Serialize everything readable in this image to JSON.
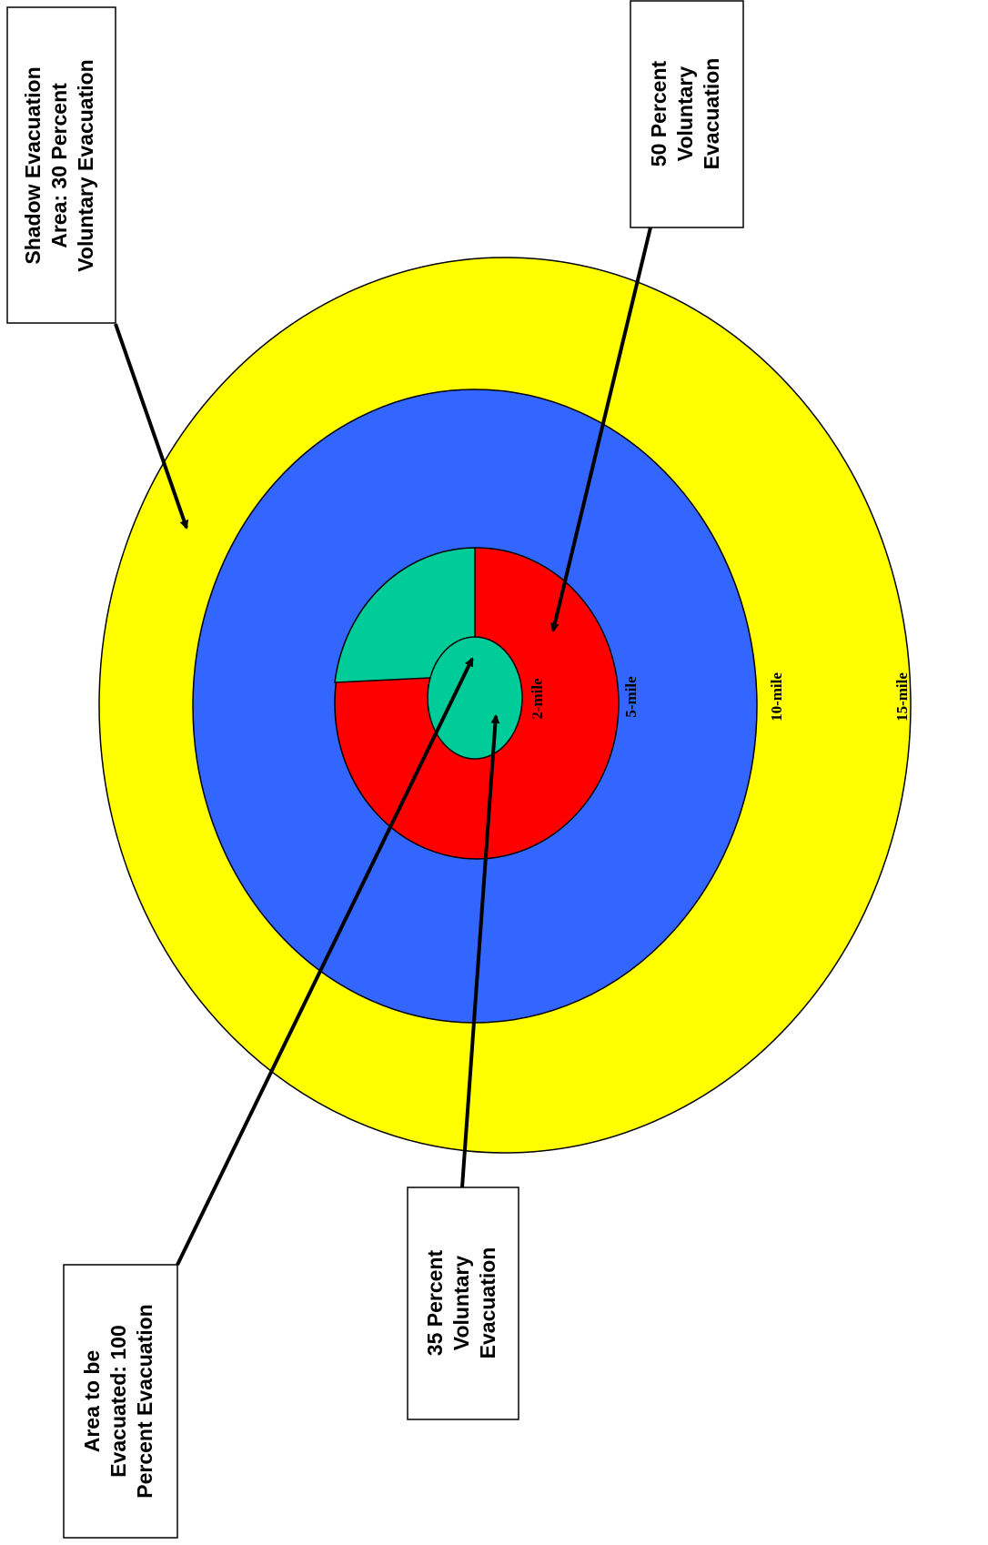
{
  "rings": [
    {
      "label": "2-mile"
    },
    {
      "label": "5-mile"
    },
    {
      "label": "10-mile"
    },
    {
      "label": "15-mile"
    }
  ],
  "callouts": [
    {
      "lines": [
        "Shadow Evacuation",
        "Area: 30 Percent",
        "Voluntary Evacuation"
      ]
    },
    {
      "lines": [
        "50 Percent",
        "Voluntary",
        "Evacuation"
      ]
    },
    {
      "lines": [
        "Area to be",
        "Evacuated: 100",
        "Percent Evacuation"
      ]
    },
    {
      "lines": [
        "35 Percent",
        "Voluntary",
        "Evacuation"
      ]
    }
  ]
}
